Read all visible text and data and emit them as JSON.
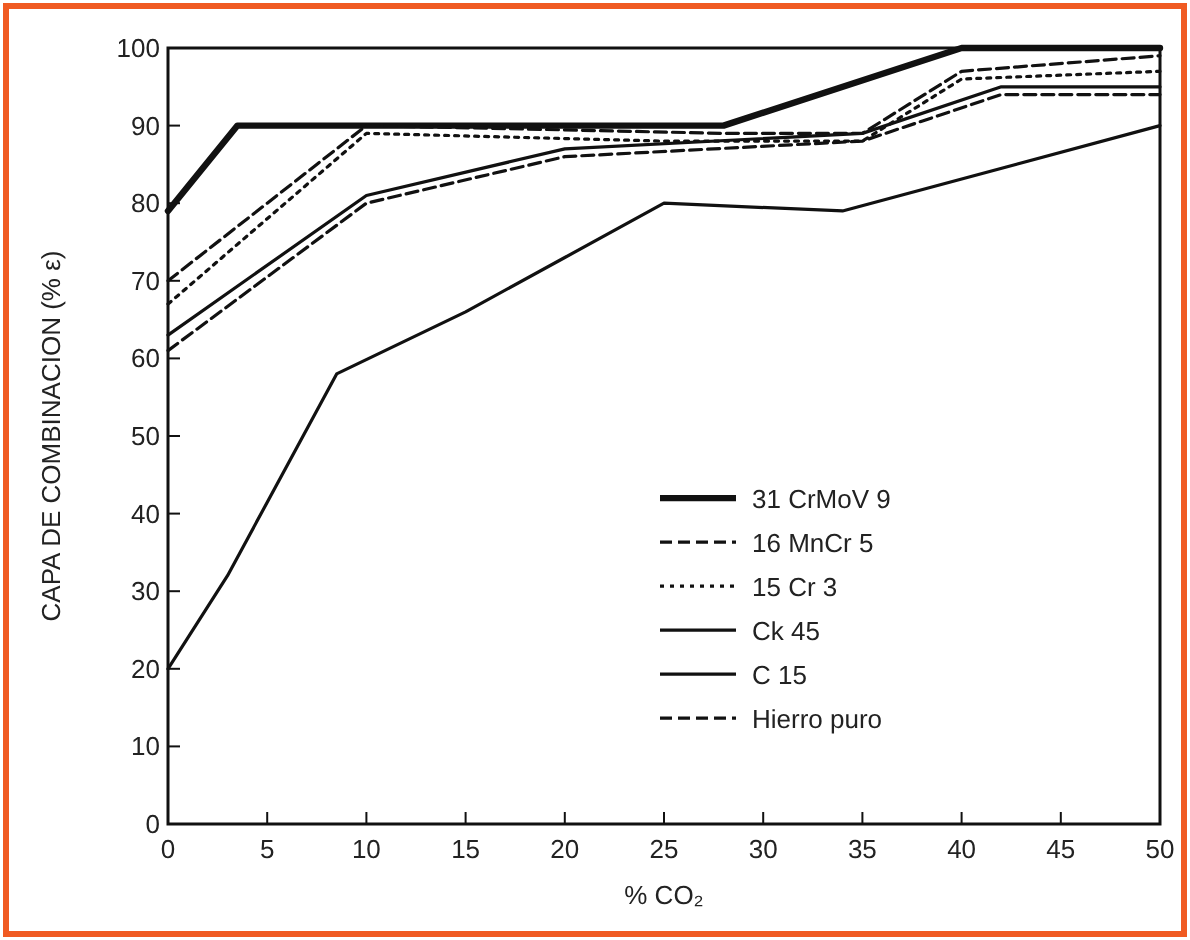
{
  "chart_data": {
    "type": "line",
    "xlabel": "% CO₂",
    "ylabel": "CAPA DE COMBINACION (% ε)",
    "xlim": [
      0,
      50
    ],
    "ylim": [
      0,
      100
    ],
    "xticks": [
      0,
      5,
      10,
      15,
      20,
      25,
      30,
      35,
      40,
      45,
      50
    ],
    "yticks": [
      0,
      10,
      20,
      30,
      40,
      50,
      60,
      70,
      80,
      90,
      100
    ],
    "grid": false,
    "legend": "right",
    "series": [
      {
        "name": "31 CrMoV 9",
        "color": "#111111",
        "line_style": "solid",
        "x": [
          0,
          3.5,
          28,
          40,
          50
        ],
        "values": [
          79,
          90,
          90,
          100,
          100
        ]
      },
      {
        "name": "16 MnCr 5",
        "color": "#111111",
        "line_style": "dashed",
        "x": [
          0,
          10,
          28,
          35,
          40,
          50
        ],
        "values": [
          70,
          90,
          89,
          89,
          97,
          99
        ]
      },
      {
        "name": "15 Cr 3",
        "color": "#111111",
        "line_style": "dotted",
        "x": [
          0,
          10,
          25,
          35,
          40,
          50
        ],
        "values": [
          67,
          89,
          88,
          88,
          96,
          97
        ]
      },
      {
        "name": "Ck 45",
        "color": "#111111",
        "line_style": "solid",
        "x": [
          0,
          10,
          20,
          35,
          42,
          50
        ],
        "values": [
          63,
          81,
          87,
          89,
          95,
          95
        ]
      },
      {
        "name": "C 15",
        "color": "#111111",
        "line_style": "solid",
        "x": [
          0,
          3,
          8.5,
          15,
          20,
          25,
          34,
          50
        ],
        "values": [
          20,
          32,
          58,
          66,
          73,
          80,
          79,
          90
        ]
      },
      {
        "name": "Hierro puro",
        "color": "#111111",
        "line_style": "dashed",
        "x": [
          0,
          10,
          20,
          35,
          42,
          50
        ],
        "values": [
          61,
          80,
          86,
          88,
          94,
          94
        ]
      }
    ]
  }
}
